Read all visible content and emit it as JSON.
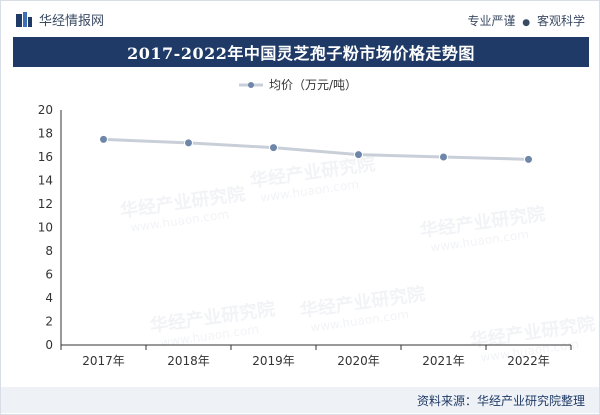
{
  "header": {
    "brand": "华经情报网",
    "slogan_left": "专业严谨",
    "slogan_dot": "●",
    "slogan_right": "客观科学"
  },
  "title": "2017-2022年中国灵芝孢子粉市场价格走势图",
  "footer": {
    "source_label": "资料来源",
    "source_sep": "：",
    "source_value": "华经产业研究院整理"
  },
  "watermark": {
    "cn": "华经产业研究院",
    "en": "www.huaon.com"
  },
  "colors": {
    "title_bg": "#1f3a66",
    "line": "#c9cfd8",
    "marker": "#6e86a8",
    "axis": "#333333"
  },
  "chart_data": {
    "type": "line",
    "categories": [
      "2017年",
      "2018年",
      "2019年",
      "2020年",
      "2021年",
      "2022年"
    ],
    "series": [
      {
        "name": "均价（万元/吨）",
        "values": [
          17.5,
          17.2,
          16.8,
          16.2,
          16.0,
          15.8
        ]
      }
    ],
    "ylim": [
      0,
      20
    ],
    "yticks": [
      0,
      2,
      4,
      6,
      8,
      10,
      12,
      14,
      16,
      18,
      20
    ],
    "legend_position": "top-center",
    "grid": false
  }
}
